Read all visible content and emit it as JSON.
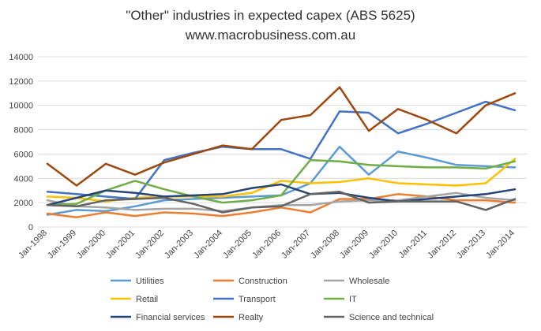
{
  "chart_data": {
    "type": "line",
    "title": "\"Other\" industries in expected capex (ABS 5625)",
    "subtitle": "www.macrobusiness.com.au",
    "xlabel": "",
    "ylabel": "",
    "ylim": [
      0,
      14000
    ],
    "yticks": [
      "0",
      "2000",
      "4000",
      "6000",
      "8000",
      "10000",
      "12000",
      "14000"
    ],
    "grid": true,
    "legend_position": "bottom",
    "categories": [
      "Jan-1998",
      "Jan-1999",
      "Jan-2000",
      "Jan-2001",
      "Jan-2002",
      "Jan-2003",
      "Jan-2004",
      "Jan-2005",
      "Jan-2006",
      "Jan-2007",
      "Jan-2008",
      "Jan-2009",
      "Jan-2010",
      "Jan-2011",
      "Jan-2012",
      "Jan-2013",
      "Jan-2014"
    ],
    "series": [
      {
        "name": "Utilities",
        "color": "#5B9BD5",
        "values": [
          1000,
          1400,
          1300,
          1700,
          2200,
          2300,
          2400,
          2500,
          2600,
          3600,
          6600,
          4300,
          6200,
          5700,
          5100,
          5000,
          4900
        ]
      },
      {
        "name": "Construction",
        "color": "#ED7D31",
        "values": [
          1100,
          800,
          1200,
          900,
          1200,
          1100,
          900,
          1200,
          1600,
          1200,
          2300,
          2300,
          2700,
          2500,
          2200,
          2200,
          2000
        ]
      },
      {
        "name": "Wholesale",
        "color": "#A5A5A5",
        "values": [
          2200,
          1700,
          1600,
          1400,
          1500,
          1500,
          1300,
          1600,
          1800,
          1800,
          2100,
          2200,
          2200,
          2500,
          2800,
          2400,
          2200
        ]
      },
      {
        "name": "Retail",
        "color": "#FFC000",
        "values": [
          2500,
          2400,
          2100,
          2400,
          2500,
          2500,
          2500,
          2800,
          3800,
          3600,
          3700,
          4000,
          3600,
          3500,
          3400,
          3600,
          5600
        ]
      },
      {
        "name": "Transport",
        "color": "#4472C4",
        "values": [
          2900,
          2700,
          2500,
          2300,
          5500,
          6100,
          6600,
          6400,
          6400,
          5600,
          9500,
          9400,
          7700,
          8500,
          9400,
          10300,
          9600
        ]
      },
      {
        "name": "IT",
        "color": "#70AD47",
        "values": [
          1800,
          1900,
          3000,
          3800,
          3100,
          2500,
          2000,
          2200,
          2600,
          5500,
          5400,
          5100,
          5000,
          4900,
          4900,
          4800,
          5400
        ]
      },
      {
        "name": "Financial services",
        "color": "#264478",
        "values": [
          1800,
          2400,
          3000,
          2800,
          2500,
          2600,
          2700,
          3200,
          3500,
          2700,
          2800,
          2400,
          2100,
          2300,
          2500,
          2700,
          3100
        ]
      },
      {
        "name": "Realty",
        "color": "#9E480E",
        "values": [
          5200,
          3400,
          5200,
          4300,
          5300,
          6000,
          6700,
          6400,
          8800,
          9200,
          11500,
          7900,
          9700,
          8800,
          7700,
          10000,
          11000
        ]
      },
      {
        "name": "Science and technical",
        "color": "#636363",
        "values": [
          1800,
          1700,
          2200,
          2300,
          2400,
          1900,
          1200,
          1600,
          1700,
          2700,
          2900,
          2000,
          2100,
          2100,
          2100,
          1400,
          2300
        ]
      }
    ]
  }
}
